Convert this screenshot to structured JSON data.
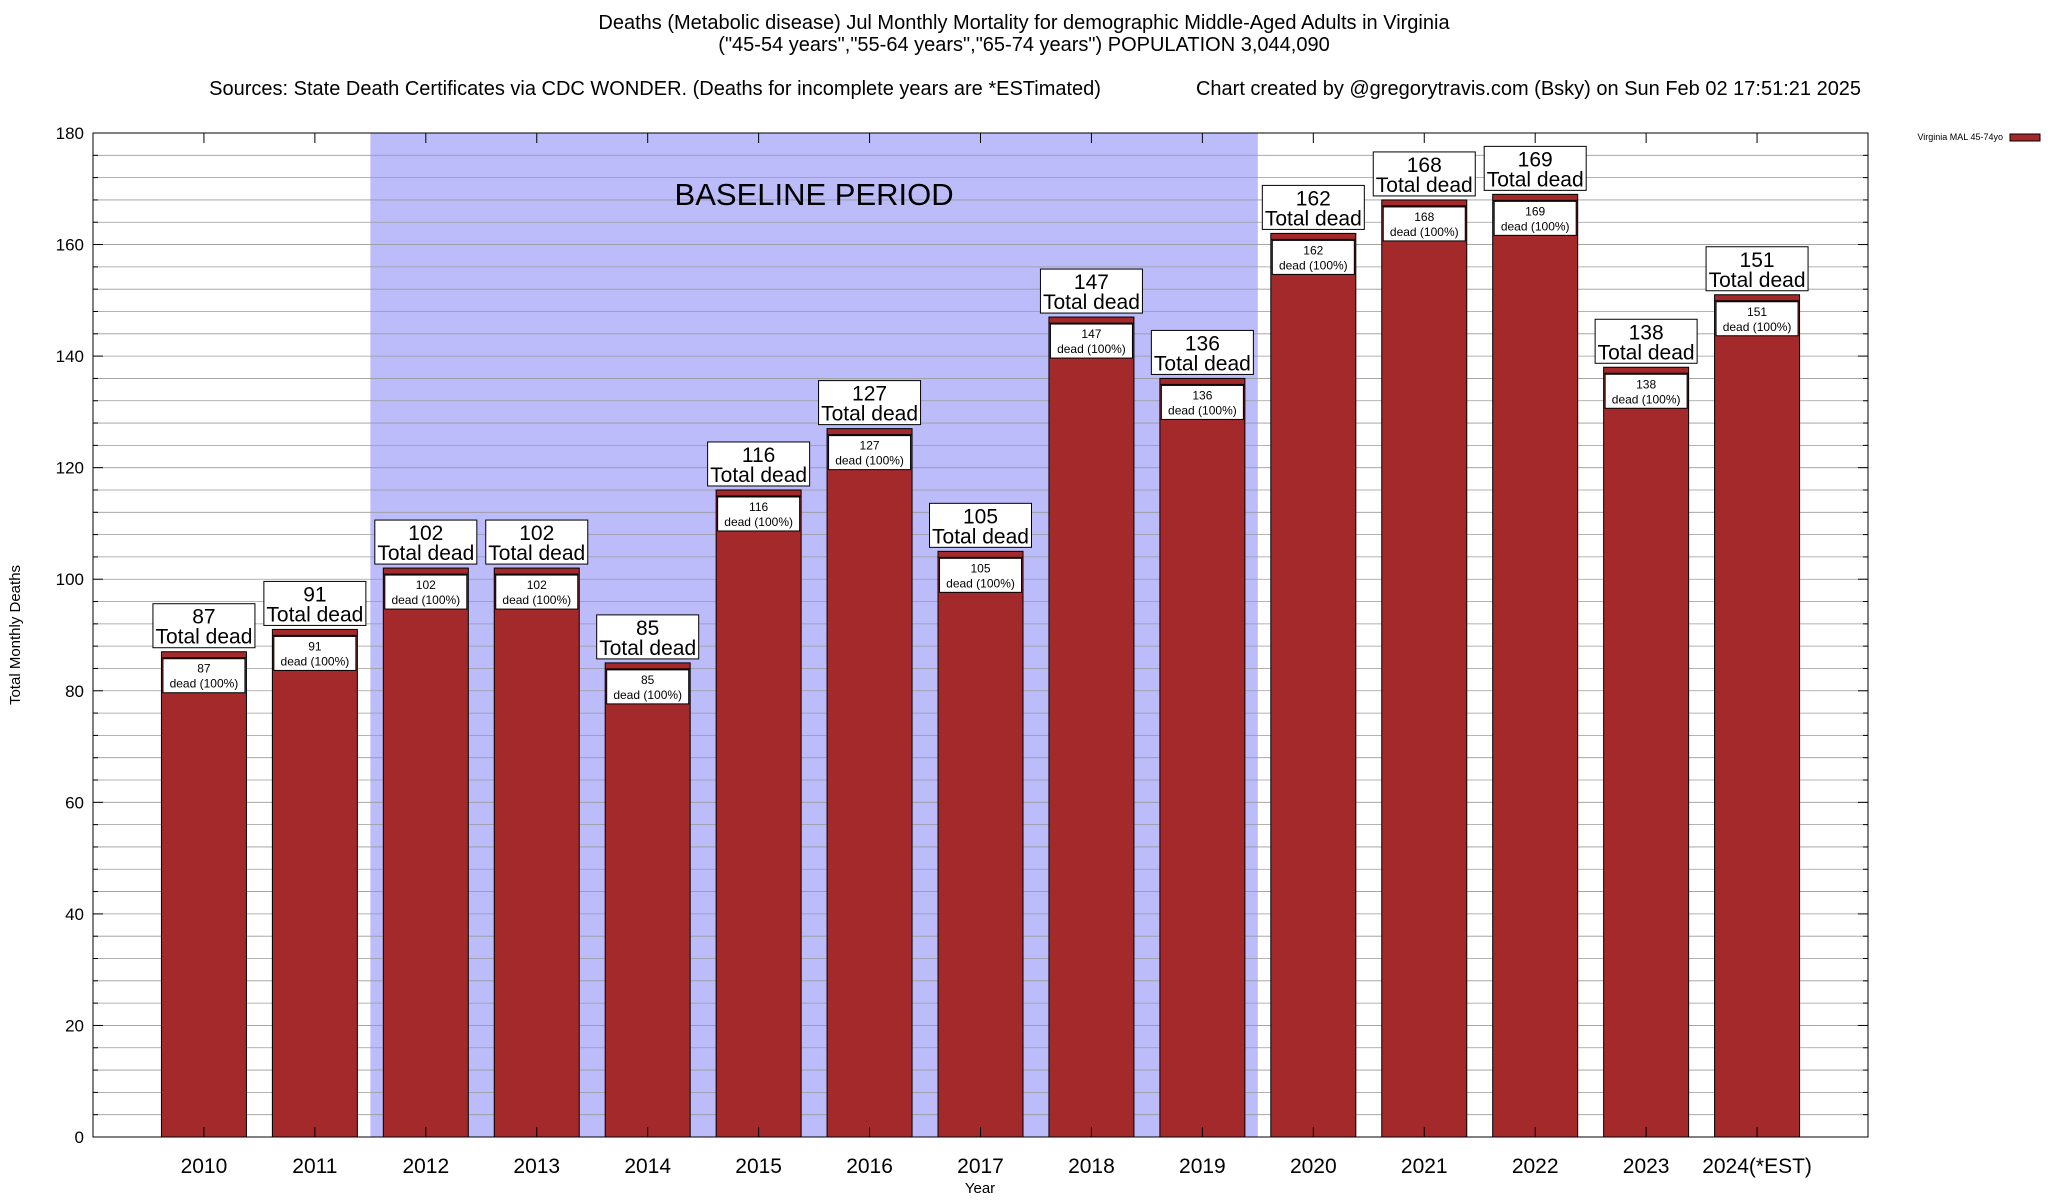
{
  "header": {
    "line1": "Deaths (Metabolic disease) Jul Monthly Mortality for demographic Middle-Aged Adults in Virginia",
    "line2": "(\"45-54 years\",\"55-64 years\",\"65-74 years\") POPULATION 3,044,090",
    "line3_left": "Sources: State Death Certificates via CDC WONDER. (Deaths for incomplete years are *ESTimated)",
    "line3_right": "Chart created by @gregorytravis.com (Bsky) on Sun Feb 02 17:51:21 2025"
  },
  "chart_data": {
    "type": "bar",
    "categories": [
      "2010",
      "2011",
      "2012",
      "2013",
      "2014",
      "2015",
      "2016",
      "2017",
      "2018",
      "2019",
      "2020",
      "2021",
      "2022",
      "2023",
      "2024(*EST)"
    ],
    "series": [
      {
        "name": "Virginia MAL 45-74yo",
        "values": [
          87,
          91,
          102,
          102,
          85,
          116,
          127,
          105,
          147,
          136,
          162,
          168,
          169,
          138,
          151
        ]
      }
    ],
    "top_label_text": "Total dead",
    "inner_label_text": "dead (100%)",
    "xlabel": "Year",
    "ylabel": "Total Monthly Deaths",
    "ylim": [
      0,
      180
    ],
    "yticks": [
      0,
      20,
      40,
      60,
      80,
      100,
      120,
      140,
      160,
      180
    ],
    "minor_tick_step": 4,
    "grid": true,
    "legend_position": "top-right",
    "baseline_band": {
      "label": "BASELINE PERIOD",
      "from": "2012",
      "to": "2019"
    },
    "colors": {
      "bar": "#a3292b",
      "band": "#bcbcfa",
      "grid": "#9a9a9a"
    }
  }
}
